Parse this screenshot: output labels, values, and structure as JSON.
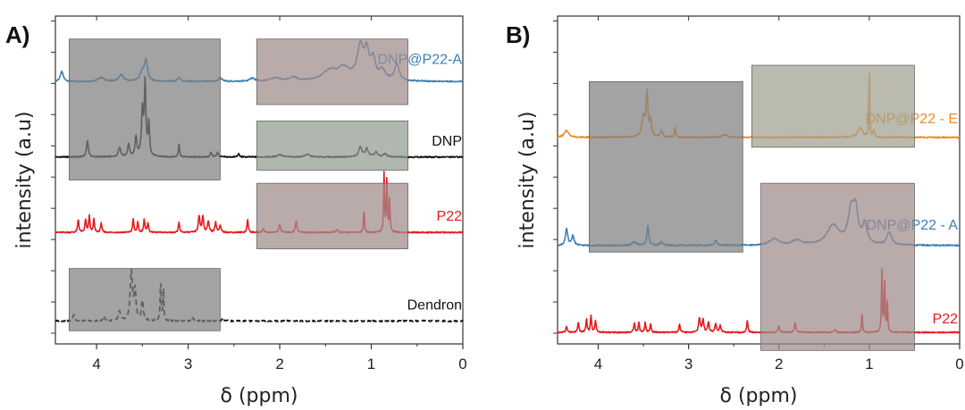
{
  "chart_data": [
    {
      "panel_label": "A)",
      "type": "line",
      "xlabel": "δ (ppm)",
      "ylabel": "intensity (a.u)",
      "xlim": [
        4.45,
        0
      ],
      "x_reversed": true,
      "x_ticks": [
        "4",
        "3",
        "2",
        "1",
        "0"
      ],
      "y_ticks_labeled": false,
      "offset_stacked": true,
      "series": [
        {
          "name": "DNP@P22-A",
          "color": "#3a7fb8",
          "baseline_level": 0.8,
          "dashed": false,
          "peaks": [
            [
              4.38,
              0.03,
              0.02
            ],
            [
              3.95,
              0.012,
              0.04
            ],
            [
              3.73,
              0.02,
              0.03
            ],
            [
              3.5,
              0.03,
              0.03
            ],
            [
              3.46,
              0.06,
              0.018
            ],
            [
              3.1,
              0.012,
              0.02
            ],
            [
              2.65,
              0.012,
              0.02
            ],
            [
              2.3,
              0.01,
              0.03
            ],
            [
              2.05,
              0.01,
              0.06
            ],
            [
              1.85,
              0.012,
              0.05
            ],
            [
              1.45,
              0.03,
              0.1
            ],
            [
              1.3,
              0.035,
              0.08
            ],
            [
              1.12,
              0.1,
              0.04
            ],
            [
              1.05,
              0.08,
              0.03
            ],
            [
              0.98,
              0.06,
              0.03
            ],
            [
              0.88,
              0.03,
              0.04
            ],
            [
              0.72,
              0.05,
              0.03
            ]
          ]
        },
        {
          "name": "DNP",
          "color": "#111111",
          "baseline_level": 0.57,
          "dashed": false,
          "peaks": [
            [
              4.1,
              0.05,
              0.012
            ],
            [
              3.75,
              0.03,
              0.015
            ],
            [
              3.65,
              0.04,
              0.012
            ],
            [
              3.57,
              0.06,
              0.012
            ],
            [
              3.5,
              0.14,
              0.012
            ],
            [
              3.47,
              0.22,
              0.01
            ],
            [
              3.43,
              0.1,
              0.01
            ],
            [
              3.1,
              0.04,
              0.008
            ],
            [
              2.75,
              0.015,
              0.01
            ],
            [
              2.68,
              0.015,
              0.01
            ],
            [
              2.45,
              0.01,
              0.01
            ],
            [
              2.0,
              0.008,
              0.03
            ],
            [
              1.7,
              0.008,
              0.03
            ],
            [
              1.12,
              0.03,
              0.02
            ],
            [
              1.05,
              0.025,
              0.02
            ],
            [
              0.95,
              0.015,
              0.02
            ],
            [
              0.85,
              0.01,
              0.02
            ]
          ]
        },
        {
          "name": "P22",
          "color": "#e8191c",
          "baseline_level": 0.34,
          "dashed": false,
          "peaks": [
            [
              4.2,
              0.04,
              0.008
            ],
            [
              4.12,
              0.04,
              0.008
            ],
            [
              4.08,
              0.05,
              0.008
            ],
            [
              4.03,
              0.04,
              0.008
            ],
            [
              3.95,
              0.03,
              0.008
            ],
            [
              3.6,
              0.04,
              0.008
            ],
            [
              3.55,
              0.03,
              0.008
            ],
            [
              3.48,
              0.04,
              0.008
            ],
            [
              3.44,
              0.03,
              0.008
            ],
            [
              3.1,
              0.03,
              0.008
            ],
            [
              2.88,
              0.05,
              0.01
            ],
            [
              2.84,
              0.05,
              0.01
            ],
            [
              2.78,
              0.035,
              0.01
            ],
            [
              2.7,
              0.03,
              0.01
            ],
            [
              2.65,
              0.02,
              0.01
            ],
            [
              2.35,
              0.04,
              0.008
            ],
            [
              2.18,
              0.012,
              0.01
            ],
            [
              2.0,
              0.025,
              0.01
            ],
            [
              1.82,
              0.035,
              0.01
            ],
            [
              1.38,
              0.01,
              0.01
            ],
            [
              1.08,
              0.07,
              0.006
            ],
            [
              0.86,
              0.18,
              0.006
            ],
            [
              0.83,
              0.16,
              0.006
            ],
            [
              0.8,
              0.1,
              0.006
            ]
          ]
        },
        {
          "name": "Dendron",
          "color": "#111111",
          "baseline_level": 0.07,
          "dashed": true,
          "peaks": [
            [
              4.25,
              0.02,
              0.01
            ],
            [
              3.92,
              0.015,
              0.01
            ],
            [
              3.75,
              0.03,
              0.012
            ],
            [
              3.62,
              0.15,
              0.015
            ],
            [
              3.58,
              0.09,
              0.012
            ],
            [
              3.5,
              0.06,
              0.012
            ],
            [
              3.3,
              0.12,
              0.006
            ],
            [
              3.27,
              0.1,
              0.006
            ],
            [
              2.95,
              0.01,
              0.01
            ],
            [
              2.62,
              0.01,
              0.01
            ]
          ]
        }
      ],
      "overlays": [
        {
          "x": [
            4.3,
            2.65
          ],
          "y": [
            0.5,
            0.93
          ],
          "color": "#808080"
        },
        {
          "x": [
            2.25,
            0.6
          ],
          "y": [
            0.73,
            0.93
          ],
          "color": "#a08a8a"
        },
        {
          "x": [
            2.25,
            0.6
          ],
          "y": [
            0.53,
            0.68
          ],
          "color": "#919b8f"
        },
        {
          "x": [
            2.25,
            0.6
          ],
          "y": [
            0.29,
            0.49
          ],
          "color": "#a08a8a"
        },
        {
          "x": [
            4.3,
            2.65
          ],
          "y": [
            0.04,
            0.23
          ],
          "color": "#808080"
        }
      ]
    },
    {
      "panel_label": "B)",
      "type": "line",
      "xlabel": "δ (ppm)",
      "ylabel": "intensity (a.u)",
      "xlim": [
        4.45,
        0
      ],
      "x_reversed": true,
      "x_ticks": [
        "4",
        "3",
        "2",
        "1",
        "0"
      ],
      "y_ticks_labeled": false,
      "offset_stacked": true,
      "series": [
        {
          "name": "DNP@P22 - E",
          "color": "#f08a24",
          "baseline_level": 0.63,
          "dashed": false,
          "peaks": [
            [
              4.35,
              0.02,
              0.03
            ],
            [
              3.5,
              0.06,
              0.02
            ],
            [
              3.46,
              0.13,
              0.012
            ],
            [
              3.42,
              0.05,
              0.012
            ],
            [
              3.3,
              0.02,
              0.015
            ],
            [
              3.15,
              0.03,
              0.008
            ],
            [
              2.6,
              0.008,
              0.03
            ],
            [
              1.1,
              0.03,
              0.03
            ],
            [
              1.0,
              0.2,
              0.005
            ],
            [
              0.95,
              0.02,
              0.01
            ]
          ]
        },
        {
          "name": "DNP@P22 - A",
          "color": "#3a7fb8",
          "baseline_level": 0.3,
          "dashed": false,
          "peaks": [
            [
              4.35,
              0.05,
              0.015
            ],
            [
              4.28,
              0.03,
              0.015
            ],
            [
              3.6,
              0.01,
              0.03
            ],
            [
              3.45,
              0.06,
              0.012
            ],
            [
              3.3,
              0.01,
              0.02
            ],
            [
              2.7,
              0.015,
              0.015
            ],
            [
              2.05,
              0.02,
              0.06
            ],
            [
              1.8,
              0.015,
              0.06
            ],
            [
              1.4,
              0.06,
              0.08
            ],
            [
              1.2,
              0.1,
              0.04
            ],
            [
              1.15,
              0.09,
              0.03
            ],
            [
              1.05,
              0.06,
              0.03
            ],
            [
              0.78,
              0.04,
              0.03
            ]
          ]
        },
        {
          "name": "P22",
          "color": "#e8191c",
          "baseline_level": 0.035,
          "dashed": false,
          "peaks": [
            [
              4.35,
              0.02,
              0.008
            ],
            [
              4.22,
              0.03,
              0.008
            ],
            [
              4.13,
              0.04,
              0.008
            ],
            [
              4.08,
              0.05,
              0.008
            ],
            [
              4.03,
              0.035,
              0.008
            ],
            [
              3.6,
              0.03,
              0.008
            ],
            [
              3.55,
              0.03,
              0.008
            ],
            [
              3.48,
              0.03,
              0.008
            ],
            [
              3.42,
              0.025,
              0.008
            ],
            [
              3.1,
              0.025,
              0.008
            ],
            [
              2.88,
              0.045,
              0.01
            ],
            [
              2.84,
              0.04,
              0.01
            ],
            [
              2.78,
              0.03,
              0.01
            ],
            [
              2.7,
              0.025,
              0.01
            ],
            [
              2.65,
              0.02,
              0.01
            ],
            [
              2.35,
              0.035,
              0.008
            ],
            [
              2.0,
              0.02,
              0.01
            ],
            [
              1.82,
              0.03,
              0.01
            ],
            [
              1.38,
              0.01,
              0.01
            ],
            [
              1.08,
              0.06,
              0.006
            ],
            [
              0.86,
              0.19,
              0.006
            ],
            [
              0.83,
              0.15,
              0.006
            ],
            [
              0.8,
              0.09,
              0.006
            ]
          ]
        }
      ],
      "overlays": [
        {
          "x": [
            4.1,
            2.4
          ],
          "y": [
            0.28,
            0.8
          ],
          "color": "#808080"
        },
        {
          "x": [
            2.3,
            0.5
          ],
          "y": [
            0.6,
            0.85
          ],
          "color": "#a0a08f"
        },
        {
          "x": [
            2.2,
            0.5
          ],
          "y": [
            -0.02,
            0.49
          ],
          "color": "#a08a8a"
        }
      ]
    }
  ]
}
